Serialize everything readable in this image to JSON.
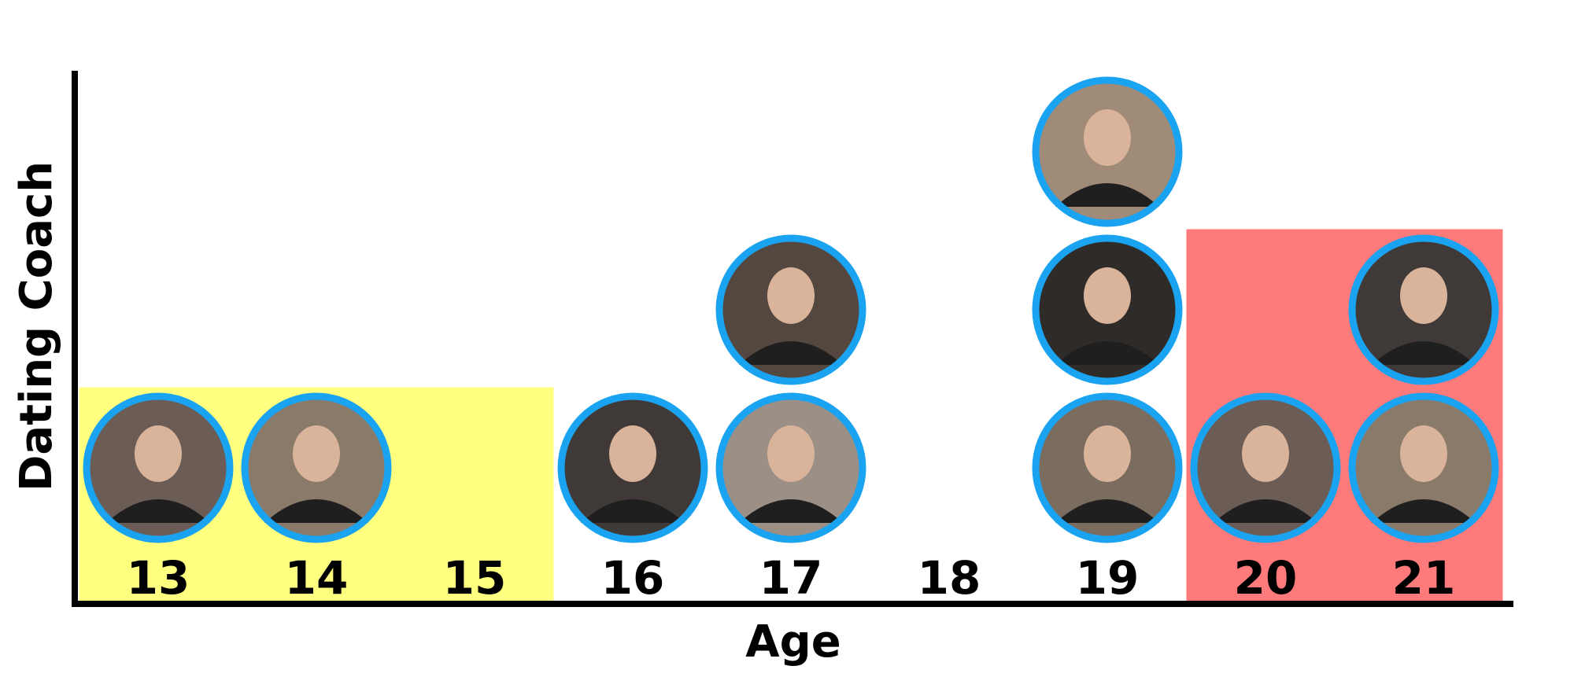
{
  "chart_data": {
    "type": "scatter",
    "xlabel": "Age",
    "ylabel": "Dating Coach",
    "categories": [
      "13",
      "14",
      "15",
      "16",
      "17",
      "18",
      "19",
      "20",
      "21"
    ],
    "values": [
      1,
      1,
      0,
      1,
      2,
      0,
      3,
      1,
      2
    ],
    "highlight_bands": [
      {
        "from": "13",
        "to": "15",
        "color": "#FFFF80"
      },
      {
        "from": "20",
        "to": "21",
        "color": "#FF7A7A"
      }
    ],
    "marker_ring_color": "#1AA3F0"
  }
}
